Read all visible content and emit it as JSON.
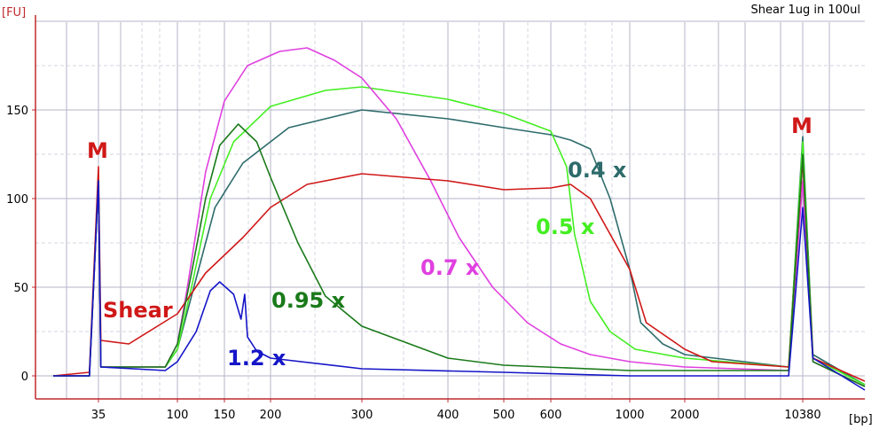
{
  "title": "Shear 1ug in 100ul",
  "y_unit": "[FU]",
  "x_unit": "[bp]",
  "colors": {
    "axis": "#c0282d",
    "grid": "#b4b4c8",
    "Shear": "#d01818",
    "1.2 x": "#1515c8",
    "0.95 x": "#1a7a1a",
    "0.7 x": "#e040e0",
    "0.5 x": "#44ee22",
    "0.4 x": "#2e6b6b"
  },
  "chart_data": {
    "type": "line",
    "title": "Shear 1ug in 100ul",
    "xlabel": "[bp]",
    "ylabel": "[FU]",
    "ylim": [
      -12,
      210
    ],
    "grid": true,
    "x_scale": "bp-ladder (non-linear)",
    "x_ticks": [
      "35",
      "100",
      "150",
      "200",
      "300",
      "400",
      "500",
      "600",
      "1000",
      "2000",
      "10380"
    ],
    "y_ticks": [
      "0",
      "50",
      "100",
      "150"
    ],
    "marker_peaks": [
      {
        "label": "M",
        "x_bp": 35,
        "y": 118
      },
      {
        "label": "M",
        "x_bp": 10380,
        "y": 135
      }
    ],
    "series": [
      {
        "name": "Shear",
        "points": [
          [
            20,
            0
          ],
          [
            32,
            2
          ],
          [
            35,
            118
          ],
          [
            37,
            20
          ],
          [
            60,
            18
          ],
          [
            100,
            35
          ],
          [
            130,
            58
          ],
          [
            170,
            78
          ],
          [
            200,
            95
          ],
          [
            240,
            108
          ],
          [
            300,
            114
          ],
          [
            400,
            110
          ],
          [
            500,
            105
          ],
          [
            600,
            106
          ],
          [
            700,
            108
          ],
          [
            800,
            100
          ],
          [
            1000,
            60
          ],
          [
            1300,
            30
          ],
          [
            2000,
            15
          ],
          [
            4000,
            8
          ],
          [
            9500,
            5
          ],
          [
            10380,
            122
          ],
          [
            11000,
            10
          ],
          [
            14000,
            -3
          ]
        ]
      },
      {
        "name": "1.2 x",
        "points": [
          [
            20,
            0
          ],
          [
            32,
            0
          ],
          [
            35,
            110
          ],
          [
            37,
            5
          ],
          [
            90,
            3
          ],
          [
            100,
            8
          ],
          [
            120,
            25
          ],
          [
            135,
            48
          ],
          [
            145,
            53
          ],
          [
            160,
            46
          ],
          [
            168,
            32
          ],
          [
            172,
            46
          ],
          [
            175,
            22
          ],
          [
            185,
            14
          ],
          [
            200,
            10
          ],
          [
            300,
            4
          ],
          [
            500,
            2
          ],
          [
            1000,
            0
          ],
          [
            9500,
            0
          ],
          [
            10380,
            95
          ],
          [
            11000,
            10
          ],
          [
            14000,
            -8
          ]
        ]
      },
      {
        "name": "0.95 x",
        "points": [
          [
            20,
            0
          ],
          [
            32,
            0
          ],
          [
            35,
            110
          ],
          [
            37,
            5
          ],
          [
            90,
            5
          ],
          [
            100,
            18
          ],
          [
            115,
            58
          ],
          [
            130,
            100
          ],
          [
            145,
            130
          ],
          [
            165,
            142
          ],
          [
            185,
            132
          ],
          [
            200,
            112
          ],
          [
            230,
            75
          ],
          [
            260,
            45
          ],
          [
            300,
            28
          ],
          [
            400,
            10
          ],
          [
            500,
            6
          ],
          [
            1000,
            3
          ],
          [
            9500,
            3
          ],
          [
            10380,
            125
          ],
          [
            11000,
            8
          ],
          [
            14000,
            -6
          ]
        ]
      },
      {
        "name": "0.7 x",
        "points": [
          [
            20,
            0
          ],
          [
            32,
            0
          ],
          [
            35,
            110
          ],
          [
            37,
            5
          ],
          [
            90,
            5
          ],
          [
            100,
            18
          ],
          [
            110,
            48
          ],
          [
            130,
            115
          ],
          [
            150,
            155
          ],
          [
            175,
            175
          ],
          [
            210,
            183
          ],
          [
            240,
            185
          ],
          [
            270,
            178
          ],
          [
            300,
            168
          ],
          [
            340,
            145
          ],
          [
            380,
            110
          ],
          [
            420,
            78
          ],
          [
            480,
            50
          ],
          [
            550,
            30
          ],
          [
            650,
            18
          ],
          [
            800,
            12
          ],
          [
            1000,
            8
          ],
          [
            2000,
            5
          ],
          [
            9500,
            3
          ],
          [
            10380,
            110
          ],
          [
            11000,
            8
          ],
          [
            14000,
            -6
          ]
        ]
      },
      {
        "name": "0.5 x",
        "points": [
          [
            20,
            0
          ],
          [
            32,
            0
          ],
          [
            35,
            110
          ],
          [
            37,
            5
          ],
          [
            90,
            5
          ],
          [
            100,
            15
          ],
          [
            115,
            50
          ],
          [
            135,
            100
          ],
          [
            160,
            132
          ],
          [
            200,
            152
          ],
          [
            260,
            161
          ],
          [
            300,
            163
          ],
          [
            400,
            156
          ],
          [
            500,
            148
          ],
          [
            600,
            138
          ],
          [
            680,
            118
          ],
          [
            720,
            80
          ],
          [
            800,
            42
          ],
          [
            900,
            25
          ],
          [
            1100,
            15
          ],
          [
            2000,
            10
          ],
          [
            9500,
            5
          ],
          [
            10380,
            132
          ],
          [
            11000,
            10
          ],
          [
            14000,
            -5
          ]
        ]
      },
      {
        "name": "0.4 x",
        "points": [
          [
            20,
            0
          ],
          [
            32,
            0
          ],
          [
            35,
            110
          ],
          [
            37,
            5
          ],
          [
            90,
            5
          ],
          [
            100,
            15
          ],
          [
            120,
            55
          ],
          [
            140,
            95
          ],
          [
            170,
            120
          ],
          [
            220,
            140
          ],
          [
            300,
            150
          ],
          [
            400,
            145
          ],
          [
            500,
            140
          ],
          [
            600,
            136
          ],
          [
            700,
            133
          ],
          [
            800,
            128
          ],
          [
            900,
            100
          ],
          [
            1000,
            60
          ],
          [
            1200,
            30
          ],
          [
            1600,
            18
          ],
          [
            2000,
            12
          ],
          [
            9500,
            5
          ],
          [
            10380,
            135
          ],
          [
            11000,
            12
          ],
          [
            14000,
            -5
          ]
        ]
      }
    ]
  },
  "labels": [
    {
      "text": "M",
      "series": "marker",
      "color": "#d01818"
    },
    {
      "text": "M",
      "series": "marker",
      "color": "#d01818"
    },
    {
      "text": "Shear",
      "series": "Shear"
    },
    {
      "text": "1.2 x",
      "series": "1.2 x"
    },
    {
      "text": "0.95 x",
      "series": "0.95 x"
    },
    {
      "text": "0.7 x",
      "series": "0.7 x"
    },
    {
      "text": "0.5 x",
      "series": "0.5 x"
    },
    {
      "text": "0.4 x",
      "series": "0.4 x"
    }
  ]
}
